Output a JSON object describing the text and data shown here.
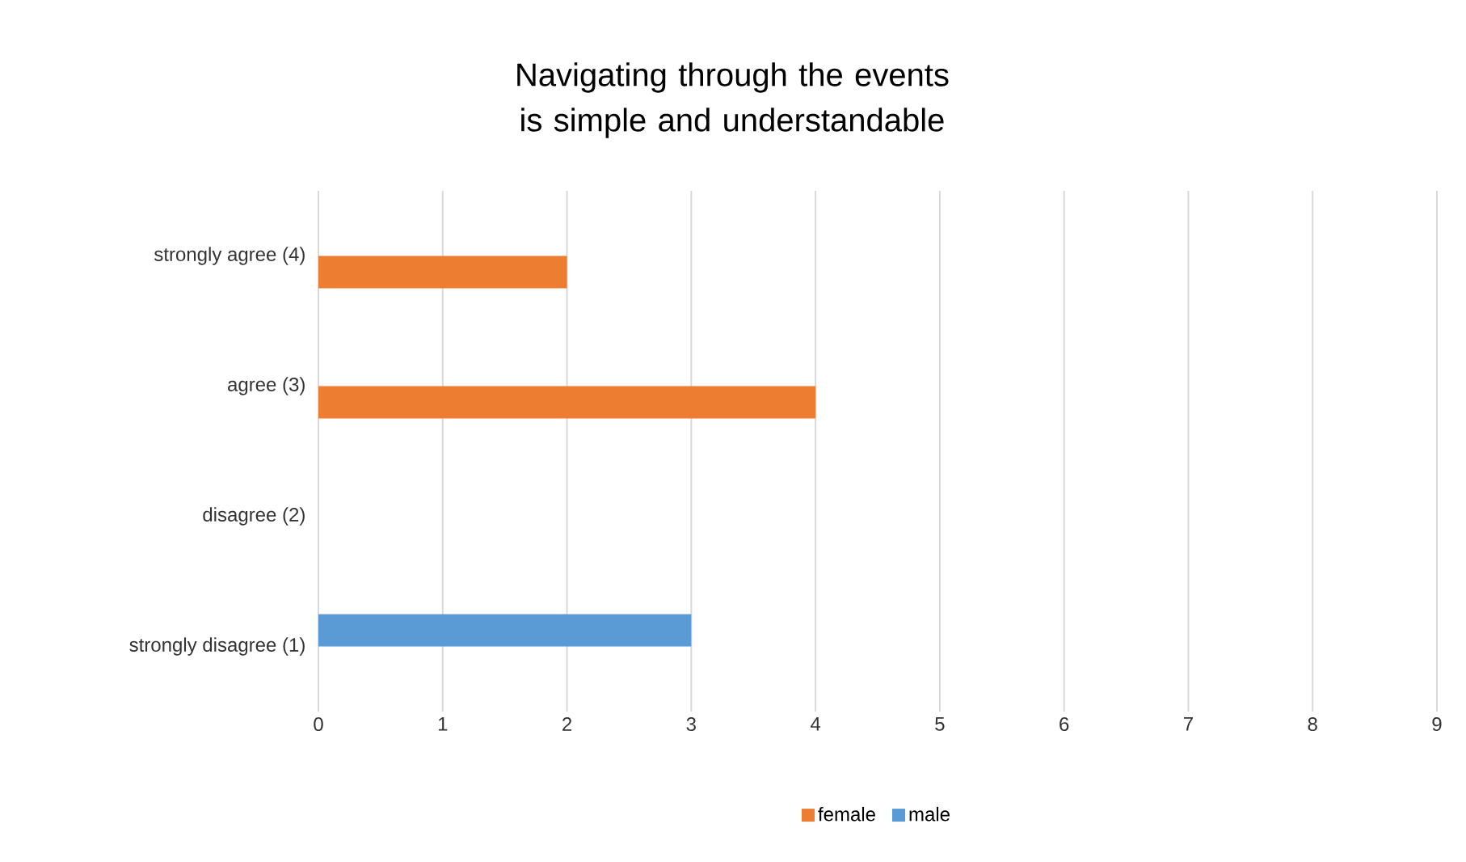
{
  "chart_data": {
    "type": "bar",
    "orientation": "horizontal",
    "title": "Navigating through the events is simple and understandable",
    "categories": [
      "strongly agree (4)",
      "agree (3)",
      "disagree (2)",
      "strongly disagree (1)"
    ],
    "series": [
      {
        "name": "female",
        "color": "#ed7d31",
        "values": [
          2,
          4,
          0,
          0
        ]
      },
      {
        "name": "male",
        "color": "#5b9bd5",
        "values": [
          0,
          0,
          0,
          3
        ]
      }
    ],
    "xlim": [
      0,
      9
    ],
    "xticks": [
      0,
      1,
      2,
      3,
      4,
      5,
      6,
      7,
      8,
      9
    ],
    "grid": "x",
    "legend": "bottom"
  }
}
